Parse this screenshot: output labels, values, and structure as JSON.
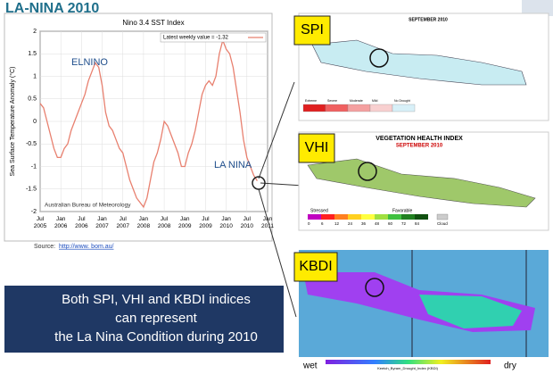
{
  "header": {
    "title": "LA-NINA 2010"
  },
  "chart_data": {
    "type": "line",
    "title": "Nino 3.4 SST Index",
    "y_label": "Sea Surface Temperature Anomaly (°C)",
    "annotations": [
      "ELNINO",
      "LA NINA",
      "Australian Bureau of Meteorology"
    ],
    "x": [
      "2005-07",
      "2005-08",
      "2005-09",
      "2005-10",
      "2005-11",
      "2005-12",
      "2006-01",
      "2006-02",
      "2006-03",
      "2006-04",
      "2006-05",
      "2006-06",
      "2006-07",
      "2006-08",
      "2006-09",
      "2006-10",
      "2006-11",
      "2006-12",
      "2007-01",
      "2007-02",
      "2007-03",
      "2007-04",
      "2007-05",
      "2007-06",
      "2007-07",
      "2007-08",
      "2007-09",
      "2007-10",
      "2007-11",
      "2007-12",
      "2008-01",
      "2008-02",
      "2008-03",
      "2008-04",
      "2008-05",
      "2008-06",
      "2008-07",
      "2008-08",
      "2008-09",
      "2008-10",
      "2008-11",
      "2008-12",
      "2009-01",
      "2009-02",
      "2009-03",
      "2009-04",
      "2009-05",
      "2009-06",
      "2009-07",
      "2009-08",
      "2009-09",
      "2009-10",
      "2009-11",
      "2009-12",
      "2010-01",
      "2010-02",
      "2010-03",
      "2010-04",
      "2010-05",
      "2010-06",
      "2010-07",
      "2010-08",
      "2010-09",
      "2010-10"
    ],
    "series": [
      {
        "name": "Latest weekly value = -1.32",
        "color": "#e8806f",
        "values": [
          0.4,
          0.3,
          0.0,
          -0.3,
          -0.6,
          -0.8,
          -0.8,
          -0.6,
          -0.5,
          -0.2,
          0.0,
          0.2,
          0.4,
          0.6,
          0.9,
          1.1,
          1.3,
          1.2,
          0.8,
          0.2,
          -0.1,
          -0.2,
          -0.4,
          -0.6,
          -0.7,
          -1.0,
          -1.3,
          -1.5,
          -1.7,
          -1.8,
          -1.9,
          -1.7,
          -1.3,
          -0.9,
          -0.7,
          -0.4,
          0.0,
          -0.1,
          -0.3,
          -0.5,
          -0.7,
          -1.0,
          -1.0,
          -0.7,
          -0.5,
          -0.2,
          0.2,
          0.6,
          0.8,
          0.9,
          0.8,
          1.0,
          1.5,
          1.8,
          1.6,
          1.5,
          1.2,
          0.7,
          0.2,
          -0.4,
          -0.8,
          -1.0,
          -1.2,
          -1.32
        ]
      }
    ],
    "xlim": [
      "2005-07",
      "2011-01"
    ],
    "xticks": [
      {
        "value": "2005-07",
        "label": "Jul 2005"
      },
      {
        "value": "2006-01",
        "label": "Jan 2006"
      },
      {
        "value": "2006-07",
        "label": "Jul 2006"
      },
      {
        "value": "2007-01",
        "label": "Jan 2007"
      },
      {
        "value": "2007-07",
        "label": "Jul 2007"
      },
      {
        "value": "2008-01",
        "label": "Jan 2008"
      },
      {
        "value": "2008-07",
        "label": "Jul 2008"
      },
      {
        "value": "2009-01",
        "label": "Jan 2009"
      },
      {
        "value": "2009-07",
        "label": "Jul 2009"
      },
      {
        "value": "2010-01",
        "label": "Jan 2010"
      },
      {
        "value": "2010-07",
        "label": "Jul 2010"
      },
      {
        "value": "2011-01",
        "label": "Jan 2011"
      }
    ],
    "ylim": [
      -2,
      2
    ],
    "yticks": [
      2,
      1.5,
      1,
      0.5,
      0,
      -0.5,
      -1,
      -1.5,
      -2
    ],
    "grid": true
  },
  "source": {
    "label": "Source:",
    "link": "http://www. bom.au/"
  },
  "spi": {
    "tag": "SPI",
    "title": "SEPTEMBER 2010",
    "legend": [
      "Extreme",
      "Severe",
      "Moderate",
      "Mild",
      "No Drought"
    ]
  },
  "vhi": {
    "tag": "VHI",
    "title": "VEGETATION HEALTH INDEX",
    "subtitle": "SEPTEMBER 2010",
    "low": "Stressed",
    "high": "Favorable",
    "scale": [
      0,
      6,
      12,
      24,
      36,
      48,
      60,
      72,
      84
    ],
    "cloud": "Cloud"
  },
  "kbdi": {
    "tag": "KBDI",
    "caption": "Keetch_Byram_Drought_Index (KBDI)",
    "wet": "wet",
    "dry": "dry"
  },
  "message": {
    "lines": [
      "Both SPI, VHI and KBDI indices",
      "can represent",
      "the La Nina Condition during 2010"
    ]
  }
}
